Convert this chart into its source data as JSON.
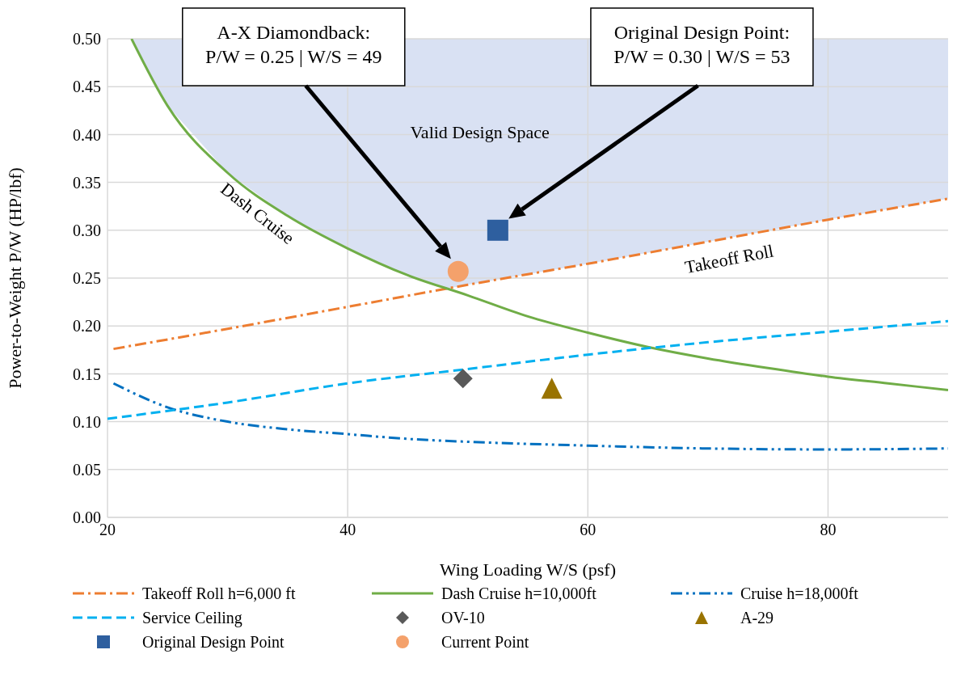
{
  "chart_data": {
    "type": "line",
    "xlabel": "Wing Loading W/S (psf)",
    "ylabel": "Power-to-Weight P/W (HP/lbf)",
    "xlim": [
      20,
      90
    ],
    "ylim": [
      0,
      0.5
    ],
    "xticks": [
      20,
      40,
      60,
      80
    ],
    "yticks": [
      {
        "value": 0,
        "label": "0.00"
      },
      {
        "value": 0.05,
        "label": "0.05"
      },
      {
        "value": 0.1,
        "label": "0.10"
      },
      {
        "value": 0.15,
        "label": "0.15"
      },
      {
        "value": 0.2,
        "label": "0.20"
      },
      {
        "value": 0.25,
        "label": "0.25"
      },
      {
        "value": 0.3,
        "label": "0.30"
      },
      {
        "value": 0.35,
        "label": "0.35"
      },
      {
        "value": 0.4,
        "label": "0.40"
      },
      {
        "value": 0.45,
        "label": "0.45"
      },
      {
        "value": 0.5,
        "label": "0.50"
      }
    ],
    "grid": true,
    "legend": "bottom",
    "series": [
      {
        "name": "Takeoff Roll h=6,000 ft",
        "color": "#ed7d31",
        "line_style": "dashdot",
        "x": [
          20.5,
          30,
          40,
          50,
          60,
          70,
          80,
          90
        ],
        "values": [
          0.176,
          0.197,
          0.22,
          0.243,
          0.265,
          0.288,
          0.311,
          0.333
        ]
      },
      {
        "name": "Dash Cruise h=10,000ft",
        "color": "#70ad47",
        "line_style": "solid",
        "x": [
          22,
          25,
          30,
          35,
          40,
          45,
          50,
          55,
          60,
          65,
          70,
          75,
          80,
          85,
          90
        ],
        "values": [
          0.5,
          0.43,
          0.36,
          0.315,
          0.281,
          0.253,
          0.232,
          0.21,
          0.193,
          0.178,
          0.166,
          0.156,
          0.147,
          0.14,
          0.133
        ]
      },
      {
        "name": "Cruise h=18,000ft",
        "color": "#0070c0",
        "line_style": "dashdotdot",
        "x": [
          20.5,
          25,
          30,
          35,
          40,
          45,
          50,
          60,
          70,
          80,
          90
        ],
        "values": [
          0.14,
          0.115,
          0.1,
          0.092,
          0.087,
          0.082,
          0.079,
          0.075,
          0.072,
          0.071,
          0.072
        ]
      },
      {
        "name": "Service Ceiling",
        "color": "#00b0f0",
        "line_style": "dashed",
        "x": [
          20,
          30,
          40,
          50,
          60,
          70,
          80,
          90
        ],
        "values": [
          0.103,
          0.12,
          0.14,
          0.155,
          0.17,
          0.183,
          0.194,
          0.205
        ]
      },
      {
        "type": "scatter",
        "name": "OV-10",
        "color": "#595959",
        "marker": "diamond",
        "x": [
          49.6
        ],
        "values": [
          0.145
        ]
      },
      {
        "type": "scatter",
        "name": "A-29",
        "color": "#997300",
        "marker": "triangle",
        "x": [
          57
        ],
        "values": [
          0.135
        ]
      },
      {
        "type": "scatter",
        "name": "Original Design Point",
        "color": "#2e5f9f",
        "marker": "square",
        "x": [
          52.5
        ],
        "values": [
          0.3
        ]
      },
      {
        "type": "scatter",
        "name": "Current Point",
        "color": "#f4a16b",
        "marker": "circle",
        "x": [
          49.2
        ],
        "values": [
          0.257
        ]
      }
    ],
    "annotations": [
      "A-X Diamondback:\nP/W = 0.25 | W/S = 49",
      "Original Design Point:\nP/W = 0.30 | W/S = 53",
      "Valid Design Space",
      "Dash Cruise",
      "Takeoff Roll"
    ]
  }
}
